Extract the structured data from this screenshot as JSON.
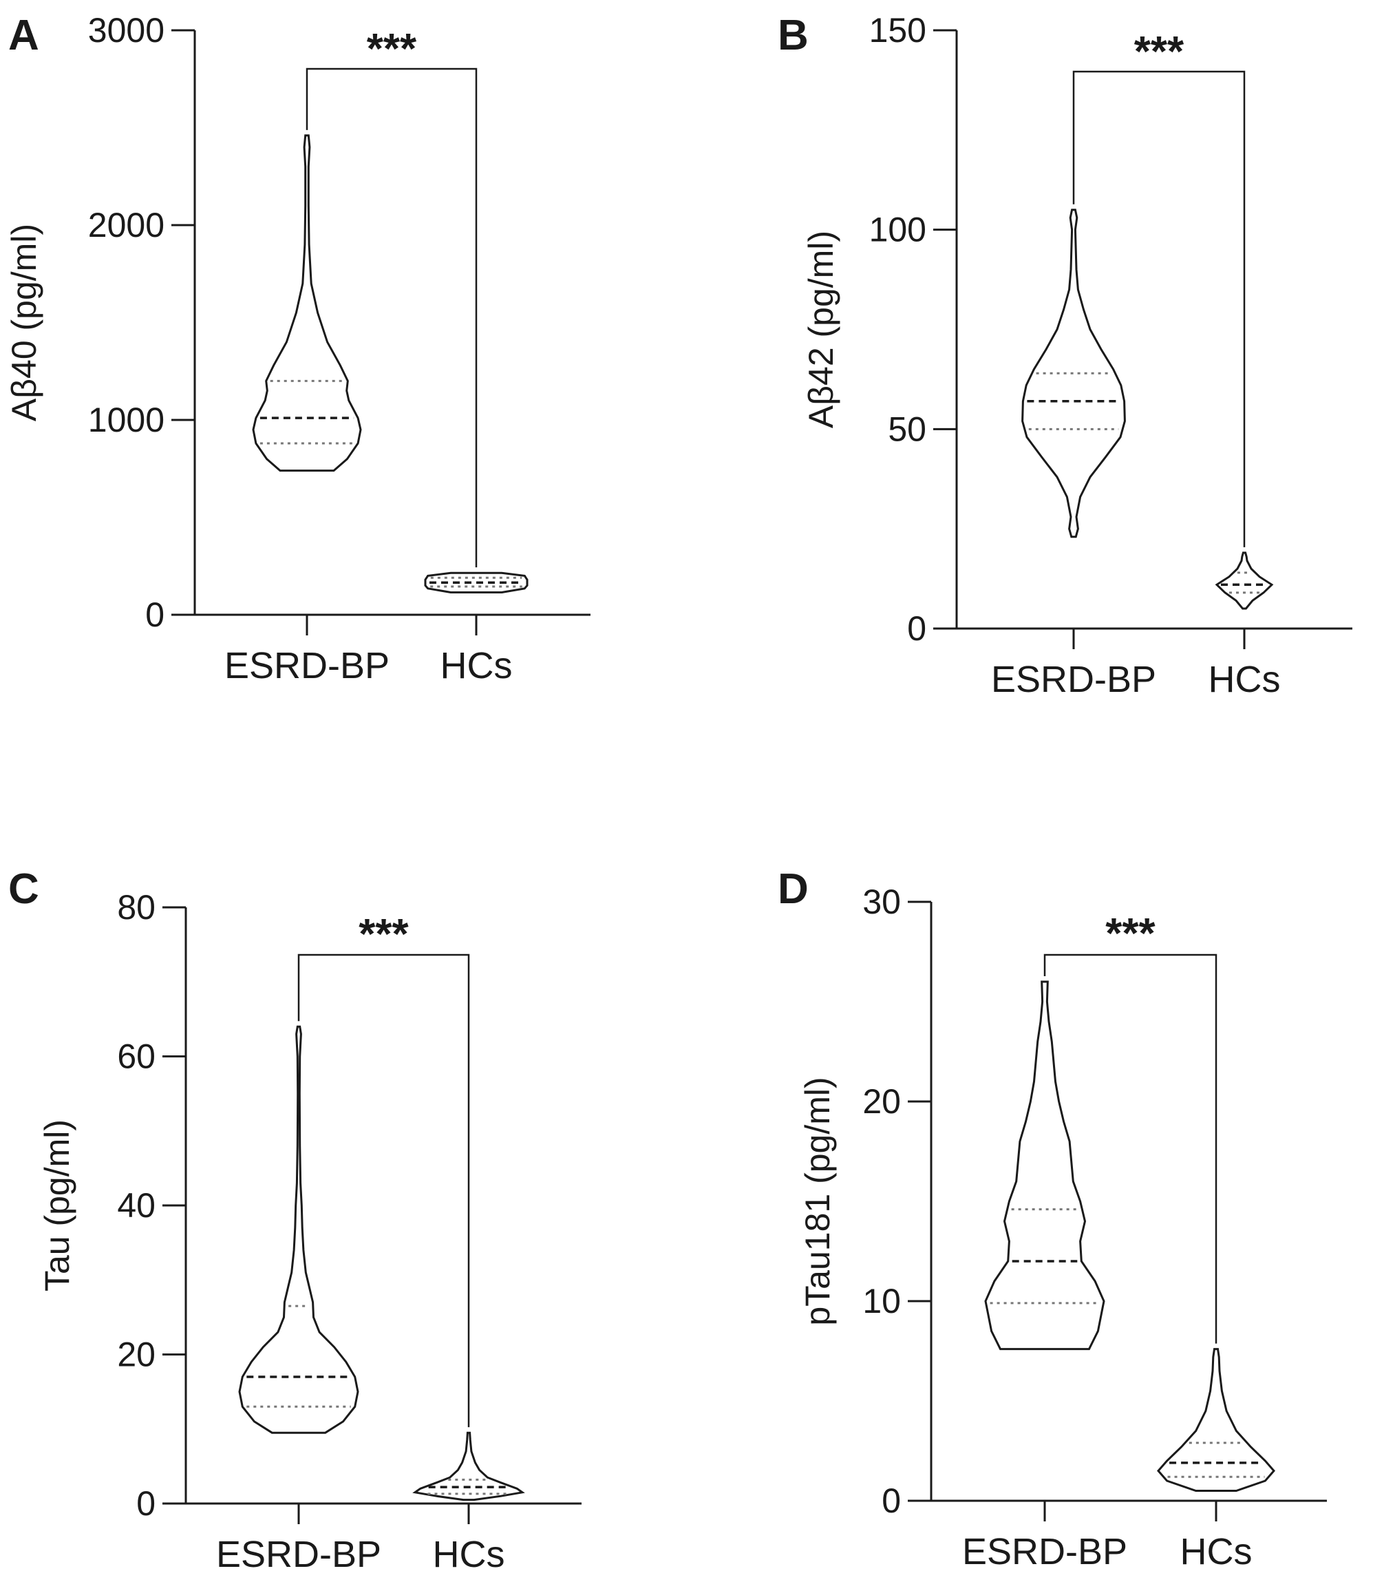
{
  "chart_data": [
    {
      "panel_label": "A",
      "type": "violin",
      "ylabel": "Aβ40 (pg/ml)",
      "ylim": [
        0,
        3000
      ],
      "yticks": [
        0,
        1000,
        2000,
        3000
      ],
      "categories": [
        "ESRD-BP",
        "HCs"
      ],
      "significance": "***",
      "groups": [
        {
          "name": "ESRD-BP",
          "min": 740,
          "q1": 880,
          "median": 1010,
          "q3": 1200,
          "max": 2460,
          "density": [
            [
              740,
              0.5
            ],
            [
              800,
              0.75
            ],
            [
              880,
              0.95
            ],
            [
              950,
              1.0
            ],
            [
              1010,
              0.95
            ],
            [
              1100,
              0.78
            ],
            [
              1150,
              0.74
            ],
            [
              1200,
              0.76
            ],
            [
              1280,
              0.62
            ],
            [
              1400,
              0.38
            ],
            [
              1550,
              0.2
            ],
            [
              1700,
              0.08
            ],
            [
              1900,
              0.04
            ],
            [
              2100,
              0.03
            ],
            [
              2300,
              0.03
            ],
            [
              2400,
              0.05
            ],
            [
              2460,
              0.03
            ]
          ]
        },
        {
          "name": "HCs",
          "min": 115,
          "q1": 145,
          "median": 165,
          "q3": 190,
          "max": 215,
          "density": [
            [
              115,
              0.5
            ],
            [
              135,
              0.95
            ],
            [
              150,
              1.0
            ],
            [
              165,
              1.0
            ],
            [
              180,
              1.0
            ],
            [
              200,
              0.95
            ],
            [
              215,
              0.5
            ]
          ]
        }
      ]
    },
    {
      "panel_label": "B",
      "type": "violin",
      "ylabel": "Aβ42 (pg/ml)",
      "ylim": [
        0,
        150
      ],
      "yticks": [
        0,
        50,
        100,
        150
      ],
      "categories": [
        "ESRD-BP",
        "HCs"
      ],
      "significance": "***",
      "groups": [
        {
          "name": "ESRD-BP",
          "min": 23,
          "q1": 50,
          "median": 57,
          "q3": 64,
          "max": 105,
          "density": [
            [
              23,
              0.04
            ],
            [
              25,
              0.08
            ],
            [
              28,
              0.05
            ],
            [
              33,
              0.12
            ],
            [
              38,
              0.3
            ],
            [
              43,
              0.58
            ],
            [
              48,
              0.85
            ],
            [
              52,
              0.93
            ],
            [
              57,
              0.92
            ],
            [
              61,
              0.86
            ],
            [
              65,
              0.72
            ],
            [
              70,
              0.5
            ],
            [
              75,
              0.3
            ],
            [
              80,
              0.18
            ],
            [
              85,
              0.08
            ],
            [
              90,
              0.05
            ],
            [
              95,
              0.04
            ],
            [
              100,
              0.03
            ],
            [
              103,
              0.06
            ],
            [
              105,
              0.03
            ]
          ]
        },
        {
          "name": "HCs",
          "min": 5,
          "q1": 9,
          "median": 11,
          "q3": 14,
          "max": 19,
          "density": [
            [
              5,
              0.06
            ],
            [
              7,
              0.3
            ],
            [
              9,
              0.7
            ],
            [
              11,
              1.0
            ],
            [
              13,
              0.55
            ],
            [
              15,
              0.25
            ],
            [
              17,
              0.1
            ],
            [
              18,
              0.08
            ],
            [
              19,
              0.04
            ]
          ]
        }
      ]
    },
    {
      "panel_label": "C",
      "type": "violin",
      "ylabel": "Tau (pg/ml)",
      "ylim": [
        0,
        80
      ],
      "yticks": [
        0,
        20,
        40,
        60,
        80
      ],
      "categories": [
        "ESRD-BP",
        "HCs"
      ],
      "significance": "***",
      "groups": [
        {
          "name": "ESRD-BP",
          "min": 9.5,
          "q1": 13,
          "median": 17,
          "q3": 26.5,
          "max": 64,
          "density": [
            [
              9.5,
              0.45
            ],
            [
              11,
              0.75
            ],
            [
              13,
              0.95
            ],
            [
              15,
              1.0
            ],
            [
              17,
              0.95
            ],
            [
              19,
              0.8
            ],
            [
              21,
              0.6
            ],
            [
              23,
              0.35
            ],
            [
              25,
              0.25
            ],
            [
              27,
              0.24
            ],
            [
              29,
              0.18
            ],
            [
              31,
              0.12
            ],
            [
              34,
              0.08
            ],
            [
              37,
              0.06
            ],
            [
              40,
              0.05
            ],
            [
              43,
              0.03
            ],
            [
              48,
              0.02
            ],
            [
              55,
              0.015
            ],
            [
              60,
              0.02
            ],
            [
              63,
              0.04
            ],
            [
              64,
              0.02
            ]
          ]
        },
        {
          "name": "HCs",
          "min": 0.5,
          "q1": 1.3,
          "median": 2.2,
          "q3": 3.2,
          "max": 9.5,
          "density": [
            [
              0.5,
              0.1
            ],
            [
              1,
              0.6
            ],
            [
              1.5,
              1.0
            ],
            [
              2,
              0.9
            ],
            [
              2.8,
              0.6
            ],
            [
              3.5,
              0.35
            ],
            [
              4.5,
              0.2
            ],
            [
              5.5,
              0.12
            ],
            [
              7,
              0.05
            ],
            [
              8.5,
              0.03
            ],
            [
              9.5,
              0.02
            ]
          ]
        }
      ]
    },
    {
      "panel_label": "D",
      "type": "violin",
      "ylabel": "pTau181 (pg/ml)",
      "ylim": [
        0,
        30
      ],
      "yticks": [
        0,
        10,
        20,
        30
      ],
      "categories": [
        "ESRD-BP",
        "HCs"
      ],
      "significance": "***",
      "groups": [
        {
          "name": "ESRD-BP",
          "min": 7.6,
          "q1": 9.9,
          "median": 12,
          "q3": 14.6,
          "max": 26,
          "density": [
            [
              7.6,
              0.75
            ],
            [
              8.5,
              0.9
            ],
            [
              10,
              1.0
            ],
            [
              11,
              0.85
            ],
            [
              12,
              0.62
            ],
            [
              13,
              0.6
            ],
            [
              14,
              0.68
            ],
            [
              15,
              0.6
            ],
            [
              16,
              0.48
            ],
            [
              17,
              0.45
            ],
            [
              18,
              0.42
            ],
            [
              19,
              0.32
            ],
            [
              20,
              0.24
            ],
            [
              21,
              0.18
            ],
            [
              22,
              0.15
            ],
            [
              23,
              0.12
            ],
            [
              24,
              0.07
            ],
            [
              25,
              0.04
            ],
            [
              26,
              0.05
            ]
          ]
        },
        {
          "name": "HCs",
          "min": 0.5,
          "q1": 1.2,
          "median": 1.9,
          "q3": 2.9,
          "max": 7.6,
          "density": [
            [
              0.5,
              0.35
            ],
            [
              1,
              0.85
            ],
            [
              1.5,
              1.0
            ],
            [
              2,
              0.85
            ],
            [
              2.7,
              0.6
            ],
            [
              3.5,
              0.35
            ],
            [
              4.5,
              0.18
            ],
            [
              5.5,
              0.1
            ],
            [
              6.5,
              0.06
            ],
            [
              7.2,
              0.05
            ],
            [
              7.6,
              0.03
            ]
          ]
        }
      ]
    }
  ]
}
